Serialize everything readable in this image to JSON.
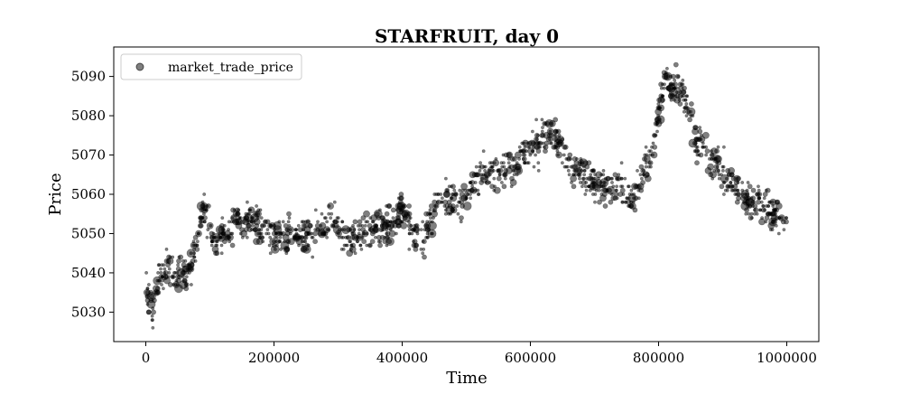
{
  "chart_data": {
    "type": "scatter",
    "title": "STARFRUIT, day 0",
    "xlabel": "Time",
    "ylabel": "Price",
    "xlim": [
      -50000,
      1050000
    ],
    "ylim": [
      5022.5,
      5097.5
    ],
    "xticks": [
      0,
      200000,
      400000,
      600000,
      800000,
      1000000
    ],
    "xtick_labels": [
      "0",
      "200000",
      "400000",
      "600000",
      "800000",
      "1000000"
    ],
    "yticks": [
      5030,
      5040,
      5050,
      5060,
      5070,
      5080,
      5090
    ],
    "ytick_labels": [
      "5030",
      "5040",
      "5050",
      "5060",
      "5070",
      "5080",
      "5090"
    ],
    "grid": false,
    "legend": {
      "position": "top-left",
      "entries": [
        "market_trade_price"
      ]
    },
    "series": [
      {
        "name": "market_trade_price",
        "color": "#000000",
        "opacity": 0.5,
        "x_range": [
          0,
          1000000
        ],
        "trend": [
          [
            0,
            5037
          ],
          [
            10000,
            5031
          ],
          [
            20000,
            5038
          ],
          [
            35000,
            5042
          ],
          [
            50000,
            5039
          ],
          [
            70000,
            5041
          ],
          [
            90000,
            5056
          ],
          [
            110000,
            5047
          ],
          [
            140000,
            5054
          ],
          [
            170000,
            5053
          ],
          [
            200000,
            5049
          ],
          [
            230000,
            5050
          ],
          [
            260000,
            5049
          ],
          [
            290000,
            5053
          ],
          [
            320000,
            5048
          ],
          [
            350000,
            5051
          ],
          [
            380000,
            5052
          ],
          [
            400000,
            5056
          ],
          [
            430000,
            5047
          ],
          [
            460000,
            5060
          ],
          [
            490000,
            5058
          ],
          [
            520000,
            5065
          ],
          [
            560000,
            5066
          ],
          [
            600000,
            5071
          ],
          [
            630000,
            5076
          ],
          [
            660000,
            5068
          ],
          [
            700000,
            5063
          ],
          [
            740000,
            5062
          ],
          [
            760000,
            5058
          ],
          [
            790000,
            5072
          ],
          [
            810000,
            5089
          ],
          [
            840000,
            5086
          ],
          [
            860000,
            5073
          ],
          [
            890000,
            5068
          ],
          [
            920000,
            5061
          ],
          [
            950000,
            5058
          ],
          [
            980000,
            5055
          ],
          [
            1000000,
            5052
          ]
        ],
        "spread": 2.8,
        "n_points": 1500
      }
    ]
  }
}
